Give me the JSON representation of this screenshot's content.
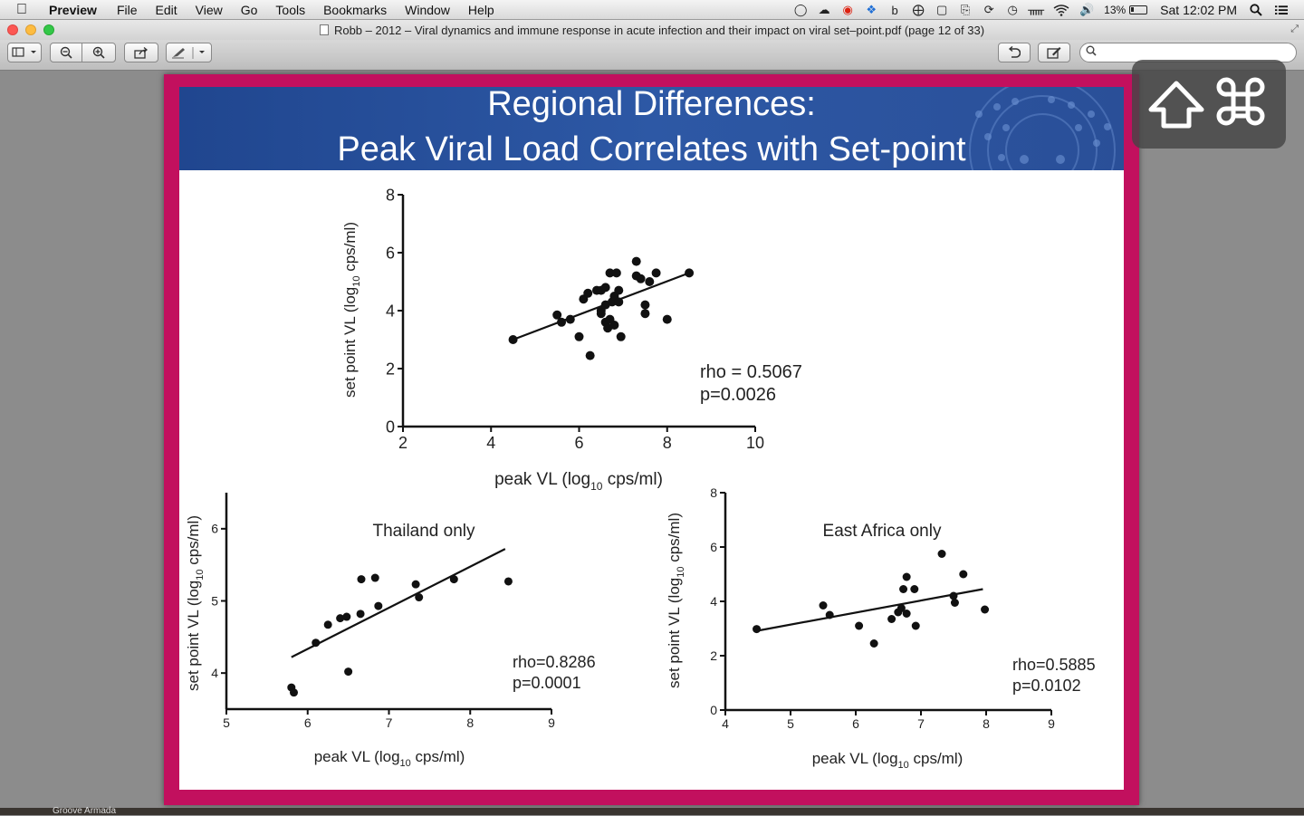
{
  "menubar": {
    "app_name": "Preview",
    "items": [
      "File",
      "Edit",
      "View",
      "Go",
      "Tools",
      "Bookmarks",
      "Window",
      "Help"
    ],
    "battery_percent": "13%",
    "clock": "Sat 12:02 PM"
  },
  "window": {
    "title": "Robb – 2012 – Viral dynamics and immune response in acute infection and their impact on viral set–point.pdf (page 12 of 33)"
  },
  "toolbar": {
    "search_placeholder": ""
  },
  "slide": {
    "title_line1": "Regional Differences:",
    "title_line2": "Peak Viral Load Correlates with Set-point"
  },
  "overlay": {
    "icons": [
      "shift-icon",
      "command-icon"
    ]
  },
  "dock": {
    "partial_label": "Groove Armada"
  },
  "chart_data": [
    {
      "type": "scatter",
      "title": "",
      "xlabel": "peak VL (log10 cps/ml)",
      "ylabel": "set point VL (log10 cps/ml)",
      "xlim": [
        2,
        10
      ],
      "ylim": [
        0,
        8
      ],
      "xticks": [
        2,
        4,
        6,
        8,
        10
      ],
      "yticks": [
        0,
        2,
        4,
        6,
        8
      ],
      "annotation": [
        "rho = 0.5067",
        "p=0.0026"
      ],
      "trendline": [
        [
          4.5,
          3.0
        ],
        [
          8.5,
          5.3
        ]
      ],
      "points": [
        [
          4.5,
          3.0
        ],
        [
          5.5,
          3.85
        ],
        [
          5.6,
          3.6
        ],
        [
          5.8,
          3.7
        ],
        [
          6.0,
          3.1
        ],
        [
          6.1,
          4.4
        ],
        [
          6.2,
          4.6
        ],
        [
          6.25,
          2.45
        ],
        [
          6.4,
          4.7
        ],
        [
          6.5,
          4.7
        ],
        [
          6.5,
          4.0
        ],
        [
          6.5,
          3.9
        ],
        [
          6.6,
          3.6
        ],
        [
          6.6,
          4.2
        ],
        [
          6.6,
          4.8
        ],
        [
          6.65,
          3.4
        ],
        [
          6.7,
          5.3
        ],
        [
          6.7,
          3.7
        ],
        [
          6.75,
          4.3
        ],
        [
          6.8,
          4.5
        ],
        [
          6.8,
          3.5
        ],
        [
          6.85,
          5.3
        ],
        [
          6.9,
          4.7
        ],
        [
          6.9,
          4.3
        ],
        [
          6.95,
          3.1
        ],
        [
          7.3,
          5.2
        ],
        [
          7.3,
          5.7
        ],
        [
          7.4,
          5.1
        ],
        [
          7.5,
          4.2
        ],
        [
          7.5,
          3.9
        ],
        [
          7.6,
          5.0
        ],
        [
          7.75,
          5.3
        ],
        [
          8.0,
          3.7
        ],
        [
          8.5,
          5.3
        ]
      ]
    },
    {
      "type": "scatter",
      "title": "Thailand only",
      "xlabel": "peak VL (log10 cps/ml)",
      "ylabel": "set point VL (log10 cps/ml)",
      "xlim": [
        5,
        9
      ],
      "ylim": [
        3.5,
        6.5
      ],
      "xticks": [
        5,
        6,
        7,
        8,
        9
      ],
      "yticks": [
        4,
        5,
        6
      ],
      "annotation": [
        "rho=0.8286",
        "p=0.0001"
      ],
      "trendline": [
        [
          5.8,
          4.22
        ],
        [
          8.43,
          5.72
        ]
      ],
      "points": [
        [
          5.8,
          3.8
        ],
        [
          5.83,
          3.73
        ],
        [
          6.1,
          4.42
        ],
        [
          6.25,
          4.67
        ],
        [
          6.4,
          4.76
        ],
        [
          6.48,
          4.78
        ],
        [
          6.5,
          4.02
        ],
        [
          6.65,
          4.82
        ],
        [
          6.66,
          5.3
        ],
        [
          6.83,
          5.32
        ],
        [
          6.87,
          4.93
        ],
        [
          7.33,
          5.23
        ],
        [
          7.37,
          5.05
        ],
        [
          7.8,
          5.3
        ],
        [
          8.47,
          5.27
        ]
      ]
    },
    {
      "type": "scatter",
      "title": "East Africa only",
      "xlabel": "peak VL (log10 cps/ml)",
      "ylabel": "set point VL (log10 cps/ml)",
      "xlim": [
        4,
        9
      ],
      "ylim": [
        0,
        8
      ],
      "xticks": [
        4,
        5,
        6,
        7,
        8,
        9
      ],
      "yticks": [
        0,
        2,
        4,
        6,
        8
      ],
      "annotation": [
        "rho=0.5885",
        "p=0.0102"
      ],
      "trendline": [
        [
          4.45,
          2.9
        ],
        [
          7.95,
          4.45
        ]
      ],
      "points": [
        [
          4.48,
          2.98
        ],
        [
          5.5,
          3.85
        ],
        [
          5.6,
          3.5
        ],
        [
          6.05,
          3.1
        ],
        [
          6.28,
          2.45
        ],
        [
          6.55,
          3.35
        ],
        [
          6.65,
          3.6
        ],
        [
          6.7,
          3.75
        ],
        [
          6.73,
          4.45
        ],
        [
          6.78,
          4.9
        ],
        [
          6.78,
          3.55
        ],
        [
          6.9,
          4.45
        ],
        [
          6.92,
          3.1
        ],
        [
          7.32,
          5.75
        ],
        [
          7.5,
          4.2
        ],
        [
          7.52,
          3.95
        ],
        [
          7.65,
          5.0
        ],
        [
          7.98,
          3.7
        ]
      ]
    }
  ]
}
